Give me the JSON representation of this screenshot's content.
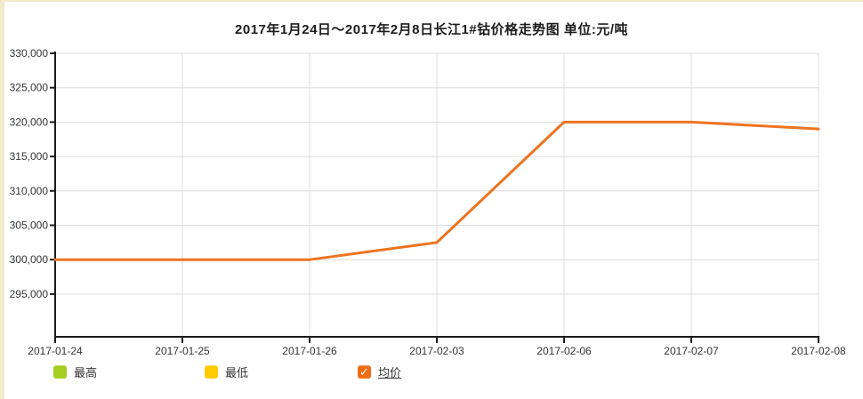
{
  "page": {
    "frame_color": "#F3E9CB",
    "background": "#FFFFFF"
  },
  "chart_data": {
    "type": "line",
    "title": "2017年1月24日～2017年2月8日长江1#钴价格走势图 单位:元/吨",
    "unit": "元/吨",
    "categories": [
      "2017-01-24",
      "2017-01-25",
      "2017-01-26",
      "2017-02-03",
      "2017-02-06",
      "2017-02-07",
      "2017-02-08"
    ],
    "series": [
      {
        "key": "avg",
        "name": "均价",
        "color": "#ED7420",
        "visible": true,
        "values": [
          300000,
          300000,
          300000,
          302500,
          320000,
          320000,
          319000
        ]
      }
    ],
    "yticks": [
      330000,
      325000,
      320000,
      315000,
      310000,
      305000,
      300000,
      295000
    ],
    "ytick_labels": [
      "330,000",
      "325,000",
      "320,000",
      "315,000",
      "310,000",
      "305,000",
      "300,000",
      "295,000"
    ],
    "ylim_top": 330000,
    "grid": true,
    "axis_color": "#1a1a1a",
    "grid_color": "#DCDCDC",
    "tick_label_color": "#333333",
    "legend_position": "bottom",
    "legend_check_glyph": "✓",
    "legend": [
      {
        "key": "high",
        "label": "最高",
        "swatch": "#A4CE21",
        "checked": false,
        "linked": false
      },
      {
        "key": "low",
        "label": "最低",
        "swatch": "#FFCB00",
        "checked": false,
        "linked": false
      },
      {
        "key": "avg",
        "label": "均价",
        "swatch": "#EF6D12",
        "checked": true,
        "linked": true
      }
    ]
  }
}
